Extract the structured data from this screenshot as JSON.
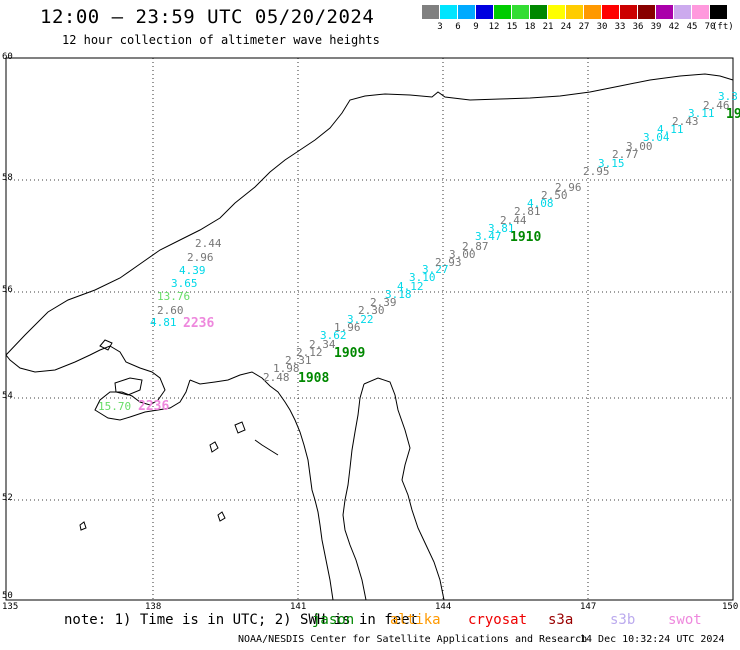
{
  "header": {
    "title": "12:00 – 23:59 UTC 05/20/2024",
    "subtitle": "12 hour collection of altimeter wave heights"
  },
  "colorbar": {
    "swatches": [
      "#808080",
      "#00e5ff",
      "#00aaff",
      "#0000e0",
      "#00cc00",
      "#33dd33",
      "#008800",
      "#ffff00",
      "#ffcc00",
      "#ff9900",
      "#ff0000",
      "#cc0000",
      "#880000",
      "#aa00aa",
      "#ccaaee",
      "#ff99dd",
      "#000000"
    ],
    "labels": [
      "3",
      "6",
      "9",
      "12",
      "15",
      "18",
      "21",
      "24",
      "27",
      "30",
      "33",
      "36",
      "39",
      "42",
      "45",
      "70",
      "(ft)"
    ]
  },
  "axes": {
    "x_ticks": [
      "135",
      "138",
      "141",
      "144",
      "147",
      "150"
    ],
    "y_ticks": [
      "60",
      "58",
      "56",
      "54",
      "52",
      "50"
    ],
    "grid": "dotted"
  },
  "track_labels": [
    {
      "text": "2.44",
      "color": "#777777"
    },
    {
      "text": "2.96",
      "color": "#777777"
    },
    {
      "text": "4.39",
      "color": "#00d8e8"
    },
    {
      "text": "3.65",
      "color": "#00d8e8"
    },
    {
      "text": "13.76",
      "color": "#66dd66"
    },
    {
      "text": "2.60",
      "color": "#777777"
    },
    {
      "text": "4.81",
      "color": "#00d8e8"
    },
    {
      "text": "2236",
      "color": "#ee88dd"
    },
    {
      "text": "15.70",
      "color": "#66dd66"
    },
    {
      "text": "2236",
      "color": "#ee88dd"
    },
    {
      "text": "2.48",
      "color": "#777777"
    },
    {
      "text": "1.98",
      "color": "#777777"
    },
    {
      "text": "2.31",
      "color": "#777777"
    },
    {
      "text": "2.12",
      "color": "#777777"
    },
    {
      "text": "2.34",
      "color": "#777777"
    },
    {
      "text": "1908",
      "color": "#008800"
    },
    {
      "text": "3.62",
      "color": "#00d8e8"
    },
    {
      "text": "1909",
      "color": "#008800"
    },
    {
      "text": "1.96",
      "color": "#777777"
    },
    {
      "text": "3.22",
      "color": "#00d8e8"
    },
    {
      "text": "2.30",
      "color": "#777777"
    },
    {
      "text": "2.39",
      "color": "#777777"
    },
    {
      "text": "3.18",
      "color": "#00d8e8"
    },
    {
      "text": "4.12",
      "color": "#00d8e8"
    },
    {
      "text": "3.10",
      "color": "#00d8e8"
    },
    {
      "text": "3.27",
      "color": "#00d8e8"
    },
    {
      "text": "2.93",
      "color": "#777777"
    },
    {
      "text": "3.00",
      "color": "#777777"
    },
    {
      "text": "2.87",
      "color": "#777777"
    },
    {
      "text": "3.47",
      "color": "#00d8e8"
    },
    {
      "text": "3.81",
      "color": "#00d8e8"
    },
    {
      "text": "1910",
      "color": "#008800"
    },
    {
      "text": "2.44",
      "color": "#777777"
    },
    {
      "text": "2.81",
      "color": "#777777"
    },
    {
      "text": "4.08",
      "color": "#00d8e8"
    },
    {
      "text": "2.50",
      "color": "#777777"
    },
    {
      "text": "2.96",
      "color": "#777777"
    },
    {
      "text": "2.95",
      "color": "#777777"
    },
    {
      "text": "3.15",
      "color": "#00d8e8"
    },
    {
      "text": "2.77",
      "color": "#777777"
    },
    {
      "text": "3.00",
      "color": "#777777"
    },
    {
      "text": "3.04",
      "color": "#00d8e8"
    },
    {
      "text": "4.11",
      "color": "#00d8e8"
    },
    {
      "text": "2.43",
      "color": "#777777"
    },
    {
      "text": "3.11",
      "color": "#00d8e8"
    },
    {
      "text": "2.46",
      "color": "#777777"
    },
    {
      "text": "3.3",
      "color": "#00d8e8"
    },
    {
      "text": "19",
      "color": "#008800"
    }
  ],
  "footer": {
    "note": "note: 1) Time is in UTC; 2) SWH is in feet",
    "legend": [
      {
        "text": "jason",
        "color": "#008800"
      },
      {
        "text": "altika",
        "color": "#ff9900"
      },
      {
        "text": "cryosat",
        "color": "#ee0000"
      },
      {
        "text": "s3a",
        "color": "#990000"
      },
      {
        "text": "s3b",
        "color": "#bbaaee"
      },
      {
        "text": "swot",
        "color": "#ee88dd"
      }
    ],
    "credit": "NOAA/NESDIS Center for Satellite Applications and Research",
    "timestamp": "14 Dec 10:32:24 UTC 2024"
  }
}
